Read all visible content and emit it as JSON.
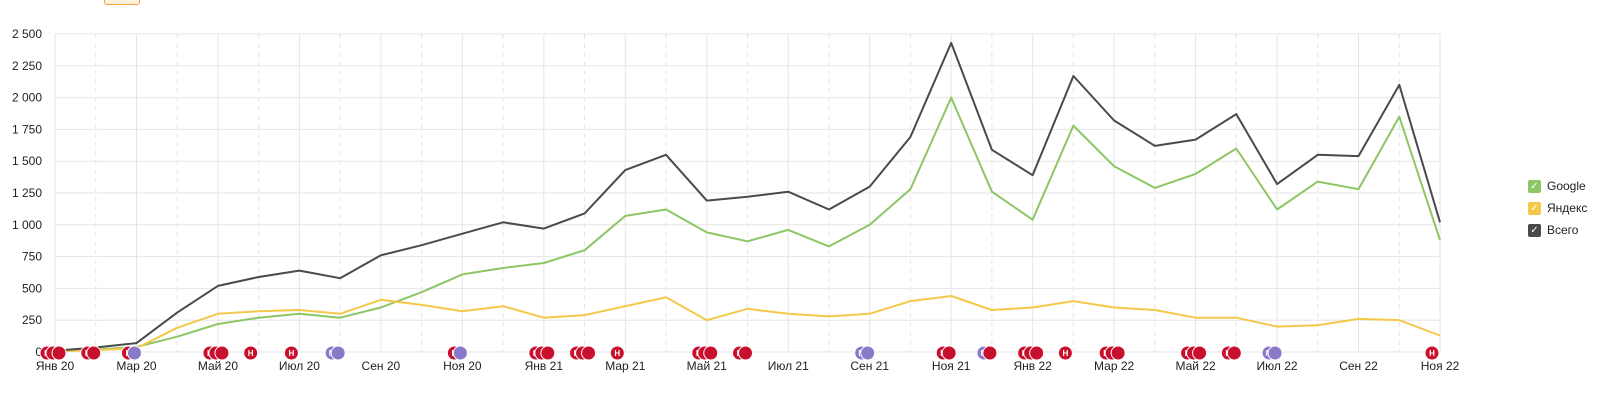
{
  "colors": {
    "google": "#8cc665",
    "yandex": "#f4c84a",
    "total": "#4a4a4a",
    "event_red": "#c8102e",
    "event_purple": "#8a78c8",
    "grid": "#e6e6e6"
  },
  "legend": [
    {
      "label": "Google",
      "color": "#8cc665",
      "checked": true
    },
    {
      "label": "Яндекс",
      "color": "#f4c84a",
      "checked": true
    },
    {
      "label": "Всего",
      "color": "#4a4a4a",
      "checked": true
    }
  ],
  "chart_data": {
    "type": "line",
    "ylim": [
      0,
      2500
    ],
    "yticks": [
      "0",
      "250",
      "500",
      "750",
      "1 000",
      "1 250",
      "1 500",
      "1 750",
      "2 000",
      "2 250",
      "2 500"
    ],
    "xtick_labels": [
      "Янв 20",
      "Мар 20",
      "Май 20",
      "Июл 20",
      "Сен 20",
      "Ноя 20",
      "Янв 21",
      "Мар 21",
      "Май 21",
      "Июл 21",
      "Сен 21",
      "Ноя 21",
      "Янв 22",
      "Мар 22",
      "Май 22",
      "Июл 22",
      "Сен 22",
      "Ноя 22"
    ],
    "x": [
      "2020-01",
      "2020-02",
      "2020-03",
      "2020-04",
      "2020-05",
      "2020-06",
      "2020-07",
      "2020-08",
      "2020-09",
      "2020-10",
      "2020-11",
      "2020-12",
      "2021-01",
      "2021-02",
      "2021-03",
      "2021-04",
      "2021-05",
      "2021-06",
      "2021-07",
      "2021-08",
      "2021-09",
      "2021-10",
      "2021-11",
      "2021-12",
      "2022-01",
      "2022-02",
      "2022-03",
      "2022-04",
      "2022-05",
      "2022-06",
      "2022-07",
      "2022-08",
      "2022-09",
      "2022-10",
      "2022-11"
    ],
    "series": [
      {
        "name": "Google",
        "values": [
          5,
          20,
          40,
          120,
          220,
          270,
          300,
          270,
          350,
          470,
          610,
          660,
          700,
          800,
          1070,
          1120,
          940,
          870,
          960,
          830,
          1000,
          1280,
          2000,
          1260,
          1040,
          1780,
          1460,
          1290,
          1400,
          1600,
          1120,
          1340,
          1280,
          1850,
          880
        ]
      },
      {
        "name": "Яндекс",
        "values": [
          5,
          15,
          30,
          190,
          300,
          320,
          330,
          300,
          410,
          370,
          320,
          360,
          270,
          290,
          360,
          430,
          250,
          340,
          300,
          280,
          300,
          400,
          440,
          330,
          350,
          400,
          350,
          330,
          270,
          270,
          200,
          210,
          260,
          250,
          130
        ]
      },
      {
        "name": "Всего",
        "values": [
          10,
          35,
          70,
          310,
          520,
          590,
          640,
          580,
          760,
          840,
          930,
          1020,
          970,
          1090,
          1430,
          1550,
          1190,
          1220,
          1260,
          1120,
          1300,
          1690,
          2430,
          1590,
          1390,
          2170,
          1820,
          1620,
          1670,
          1870,
          1320,
          1550,
          1540,
          2100,
          1020
        ]
      }
    ],
    "events": [
      {
        "x": "2020-01",
        "labels": [
          "H",
          "",
          ""
        ],
        "kind": "red"
      },
      {
        "x": "2020-02",
        "labels": [
          "H",
          ""
        ],
        "kind": "red"
      },
      {
        "x": "2020-03",
        "labels": [
          "H",
          ""
        ],
        "kind": "red-purple"
      },
      {
        "x": "2020-05",
        "labels": [
          "H",
          "",
          ""
        ],
        "kind": "red"
      },
      {
        "x": "2020-06",
        "labels": [
          "H"
        ],
        "kind": "red"
      },
      {
        "x": "2020-07",
        "labels": [
          "H"
        ],
        "kind": "red"
      },
      {
        "x": "2020-08",
        "labels": [
          "M",
          ""
        ],
        "kind": "purple"
      },
      {
        "x": "2020-11",
        "labels": [
          "H",
          ""
        ],
        "kind": "red-purple"
      },
      {
        "x": "2021-01",
        "labels": [
          "H",
          "",
          ""
        ],
        "kind": "red"
      },
      {
        "x": "2021-02",
        "labels": [
          "H",
          "",
          ""
        ],
        "kind": "red"
      },
      {
        "x": "2021-03",
        "labels": [
          "H"
        ],
        "kind": "red"
      },
      {
        "x": "2021-05",
        "labels": [
          "H",
          "",
          ""
        ],
        "kind": "red"
      },
      {
        "x": "2021-06",
        "labels": [
          "H",
          ""
        ],
        "kind": "red"
      },
      {
        "x": "2021-09",
        "labels": [
          "M",
          ""
        ],
        "kind": "purple"
      },
      {
        "x": "2021-11",
        "labels": [
          "H",
          ""
        ],
        "kind": "red"
      },
      {
        "x": "2021-12",
        "labels": [
          "M",
          ""
        ],
        "kind": "purple-red"
      },
      {
        "x": "2022-01",
        "labels": [
          "H",
          "",
          ""
        ],
        "kind": "red"
      },
      {
        "x": "2022-02",
        "labels": [
          "H"
        ],
        "kind": "red"
      },
      {
        "x": "2022-03",
        "labels": [
          "H",
          "",
          ""
        ],
        "kind": "red"
      },
      {
        "x": "2022-05",
        "labels": [
          "H",
          "",
          ""
        ],
        "kind": "red"
      },
      {
        "x": "2022-06",
        "labels": [
          "H",
          ""
        ],
        "kind": "red"
      },
      {
        "x": "2022-07",
        "labels": [
          "M",
          ""
        ],
        "kind": "purple"
      },
      {
        "x": "2022-11",
        "labels": [
          "H"
        ],
        "kind": "red"
      }
    ]
  }
}
